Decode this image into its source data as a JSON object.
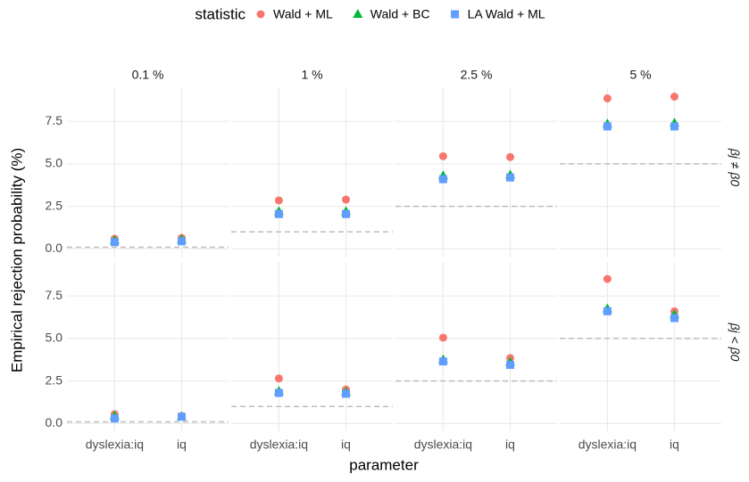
{
  "chart_data": {
    "type": "scatter",
    "legend_title": "statistic",
    "x_label": "parameter",
    "y_label": "Empirical rejection probability (%)",
    "categories": [
      "dyslexia:iq",
      "iq"
    ],
    "columns": [
      "0.1 %",
      "1 %",
      "2.5 %",
      "5 %"
    ],
    "rows": [
      "βj ≠ β0",
      "βj < β0"
    ],
    "reference": [
      0.1,
      1,
      2.5,
      5
    ],
    "ylim": [
      -0.45,
      9.5
    ],
    "yticks": [
      {
        "value": 0,
        "label": "0.0"
      },
      2.5,
      {
        "value": 5,
        "label": "5.0"
      },
      7.5
    ],
    "grid": true,
    "series": [
      {
        "name": "Wald + ML",
        "color": "#F8766D",
        "shape": "circle",
        "values": [
          [
            [
              0.6,
              0.65
            ],
            [
              2.85,
              2.9
            ],
            [
              5.45,
              5.4
            ],
            [
              8.85,
              8.95
            ]
          ],
          [
            [
              0.55,
              0.45
            ],
            [
              2.65,
              2.0
            ],
            [
              5.05,
              3.85
            ],
            [
              8.5,
              6.6
            ]
          ]
        ]
      },
      {
        "name": "Wald + BC",
        "color": "#00BA38",
        "shape": "triangle",
        "values": [
          [
            [
              0.5,
              0.55
            ],
            [
              2.2,
              2.2
            ],
            [
              4.3,
              4.35
            ],
            [
              7.35,
              7.4
            ]
          ],
          [
            [
              0.45,
              0.4
            ],
            [
              1.9,
              1.85
            ],
            [
              3.75,
              3.6
            ],
            [
              6.75,
              6.4
            ]
          ]
        ]
      },
      {
        "name": "LA Wald + ML",
        "color": "#619CFF",
        "shape": "square",
        "values": [
          [
            [
              0.4,
              0.45
            ],
            [
              2.05,
              2.05
            ],
            [
              4.1,
              4.2
            ],
            [
              7.2,
              7.2
            ]
          ],
          [
            [
              0.3,
              0.4
            ],
            [
              1.8,
              1.75
            ],
            [
              3.65,
              3.45
            ],
            [
              6.6,
              6.2
            ]
          ]
        ]
      }
    ]
  }
}
